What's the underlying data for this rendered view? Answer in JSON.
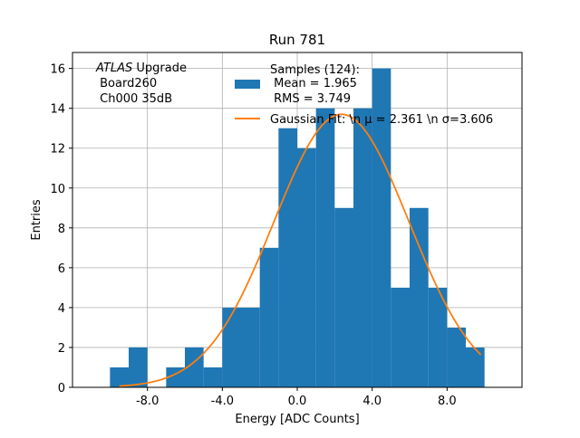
{
  "chart_data": {
    "type": "bar",
    "title": "Run 781",
    "xlabel": "Energy [ADC Counts]",
    "ylabel": "Entries",
    "xlim": [
      -12,
      12
    ],
    "ylim": [
      0,
      16.8
    ],
    "xticks": [
      -8,
      -4,
      0,
      4,
      8
    ],
    "xtick_labels": [
      "-8.0",
      "-4.0",
      "0.0",
      "4.0",
      "8.0"
    ],
    "yticks": [
      0,
      2,
      4,
      6,
      8,
      10,
      12,
      14,
      16
    ],
    "ytick_labels": [
      "0",
      "2",
      "4",
      "6",
      "8",
      "10",
      "12",
      "14",
      "16"
    ],
    "grid": true,
    "bin_edges": [
      -10,
      -9,
      -8,
      -7,
      -6,
      -5,
      -4,
      -3,
      -2,
      -1,
      0,
      1,
      2,
      3,
      4,
      5,
      6,
      7,
      8,
      9,
      10
    ],
    "counts": [
      1,
      2,
      0,
      1,
      2,
      1,
      4,
      4,
      7,
      13,
      12,
      14,
      9,
      14,
      16,
      5,
      9,
      5,
      3,
      2
    ],
    "bar_color": "#1f77b4",
    "fit": {
      "label": "Gaussian Fit: \\n μ = 2.361 \\n σ=3.606",
      "mu": 2.361,
      "sigma": 3.606,
      "amplitude": 13.7,
      "x_range": [
        -9.5,
        9.8
      ],
      "color": "#ff7f0e"
    },
    "legend": {
      "placement": "top-right",
      "samples_lines": [
        "Samples (124):",
        " Mean = 1.965",
        " RMS = 3.749"
      ]
    },
    "annotation": {
      "placement": "top-left",
      "italic": "ATLAS",
      "rest": " Upgrade",
      "lines": [
        " Board260",
        " Ch000 35dB"
      ]
    }
  }
}
